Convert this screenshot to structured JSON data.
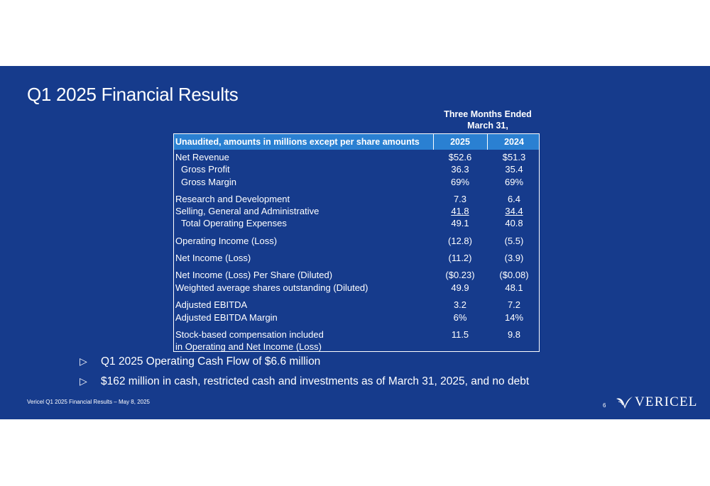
{
  "slide": {
    "title": "Q1 2025 Financial Results",
    "period_header": [
      "Three Months Ended",
      "March 31,"
    ],
    "table": {
      "columns": [
        "Unaudited, amounts in millions except per share amounts",
        "2025",
        "2024"
      ],
      "rows": [
        {
          "label": "Net Revenue",
          "v2025": "$52.6",
          "v2024": "$51.3"
        },
        {
          "label": "Gross Profit",
          "v2025": "36.3",
          "v2024": "35.4"
        },
        {
          "label": "Gross Margin",
          "v2025": "69%",
          "v2024": "69%"
        },
        {
          "label": "Research and Development",
          "v2025": "7.3",
          "v2024": "6.4"
        },
        {
          "label": "Selling, General and Administrative",
          "v2025": "41.8",
          "v2024": "34.4"
        },
        {
          "label": "Total Operating Expenses",
          "v2025": "49.1",
          "v2024": "40.8"
        },
        {
          "label": "Operating Income (Loss)",
          "v2025": "(12.8)",
          "v2024": "(5.5)"
        },
        {
          "label": "Net Income (Loss)",
          "v2025": "(11.2)",
          "v2024": "(3.9)"
        },
        {
          "label": "Net Income (Loss) Per Share (Diluted)",
          "v2025": "($0.23)",
          "v2024": "($0.08)"
        },
        {
          "label": "Weighted average shares outstanding (Diluted)",
          "v2025": "49.9",
          "v2024": "48.1"
        },
        {
          "label": "Adjusted EBITDA",
          "v2025": "3.2",
          "v2024": "7.2"
        },
        {
          "label": "Adjusted EBITDA Margin",
          "v2025": "6%",
          "v2024": "14%"
        },
        {
          "label": "Stock-based compensation included",
          "v2025": "11.5",
          "v2024": "9.8"
        },
        {
          "label": "in Operating and Net Income (Loss)",
          "v2025": "",
          "v2024": ""
        }
      ]
    },
    "bullets": [
      "Q1 2025 Operating Cash Flow of $6.6 million",
      "$162 million in cash, restricted cash and investments as of March 31, 2025, and no debt"
    ],
    "bullet_symbol": "▷",
    "footer": "Vericel Q1 2025 Financial Results – May 8, 2025",
    "page_number": "6",
    "logo_text": "VERICEL"
  },
  "colors": {
    "background": "#163b8c",
    "table_header": "#2a80d2",
    "text": "#ffffff"
  }
}
